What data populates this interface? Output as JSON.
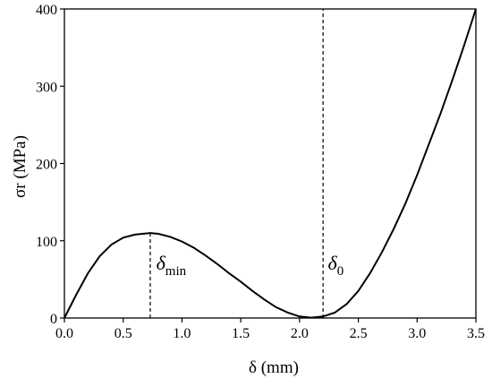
{
  "chart_data": {
    "type": "line",
    "xlabel": "δ (mm)",
    "ylabel": "σr (MPa)",
    "x_ticks": [
      "0.0",
      "0.5",
      "1.0",
      "1.5",
      "2.0",
      "2.5",
      "3.0",
      "3.5"
    ],
    "y_ticks": [
      "0",
      "100",
      "200",
      "300",
      "400"
    ],
    "xlim": [
      0,
      3.5
    ],
    "ylim": [
      0,
      400
    ],
    "grid": false,
    "series": [
      {
        "x": [
          0.0,
          0.1,
          0.2,
          0.3,
          0.4,
          0.5,
          0.6,
          0.73,
          0.8,
          0.9,
          1.0,
          1.1,
          1.2,
          1.3,
          1.4,
          1.5,
          1.6,
          1.7,
          1.8,
          1.9,
          2.0,
          2.1,
          2.2,
          2.3,
          2.4,
          2.5,
          2.6,
          2.7,
          2.8,
          2.9,
          3.0,
          3.1,
          3.2,
          3.3,
          3.4,
          3.5
        ],
        "values": [
          0,
          30,
          58,
          80,
          95,
          104,
          108,
          110,
          109,
          105,
          99,
          91,
          81,
          70,
          58,
          47,
          35,
          24,
          14,
          7,
          2,
          0.5,
          2,
          7,
          18,
          35,
          58,
          85,
          115,
          148,
          185,
          225,
          265,
          308,
          353,
          400
        ],
        "color": "#000000"
      }
    ],
    "reference_lines": [
      {
        "x": 0.73,
        "ymin": 0,
        "ymax": 110,
        "style": "dashed"
      },
      {
        "x": 2.2,
        "ymin": 0,
        "ymax": 400,
        "style": "dashed"
      }
    ],
    "annotations": [
      {
        "symbol": "δ",
        "subscript": "min",
        "x": 0.75,
        "y": 72
      },
      {
        "symbol": "δ",
        "subscript": "0",
        "x": 2.21,
        "y": 72
      }
    ]
  }
}
